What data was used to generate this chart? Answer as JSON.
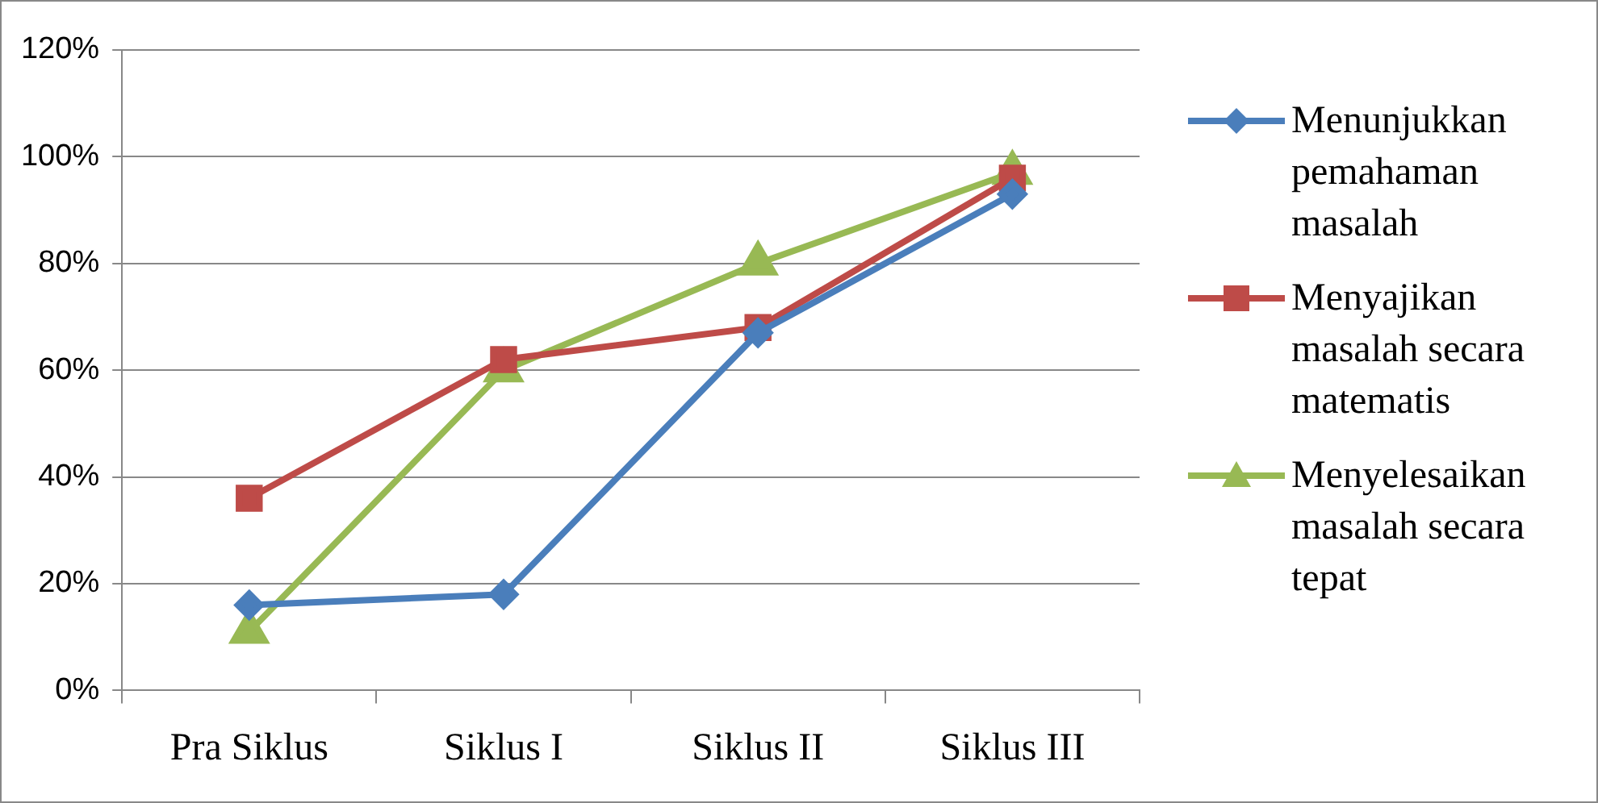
{
  "chart_data": {
    "type": "line",
    "categories": [
      "Pra Siklus",
      "Siklus I",
      "Siklus II",
      "Siklus III"
    ],
    "series": [
      {
        "name": "Menunjukkan pemahaman masalah",
        "color": "#4a7ebb",
        "marker": "diamond",
        "values": [
          16,
          18,
          67,
          93
        ]
      },
      {
        "name": "Menyajikan masalah secara matematis",
        "color": "#be4b48",
        "marker": "square",
        "values": [
          36,
          62,
          68,
          96
        ]
      },
      {
        "name": "Menyelesaikan masalah secara tepat",
        "color": "#98b954",
        "marker": "triangle",
        "values": [
          11,
          60,
          80,
          97
        ]
      }
    ],
    "ylim": [
      0,
      120
    ],
    "yticks": [
      {
        "value": 0,
        "label": "0%"
      },
      {
        "value": 20,
        "label": "20%"
      },
      {
        "value": 40,
        "label": "40%"
      },
      {
        "value": 60,
        "label": "60%"
      },
      {
        "value": 80,
        "label": "80%"
      },
      {
        "value": 100,
        "label": "100%"
      },
      {
        "value": 120,
        "label": "120%"
      }
    ],
    "grid": "y",
    "legend": "right",
    "line_style": "solid"
  }
}
